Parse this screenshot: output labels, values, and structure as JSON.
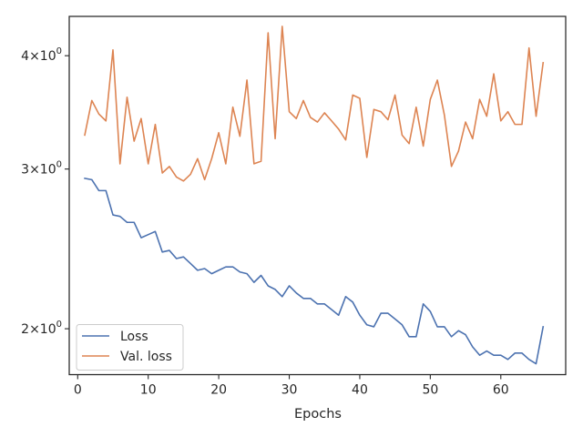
{
  "chart_data": {
    "type": "line",
    "title": "",
    "xlabel": "Epochs",
    "ylabel": "",
    "yscale": "log",
    "xlim": [
      -1.2,
      69.2
    ],
    "ylim": [
      1.78,
      4.42
    ],
    "xticks": [
      {
        "value": 0,
        "label": "0"
      },
      {
        "value": 10,
        "label": "10"
      },
      {
        "value": 20,
        "label": "20"
      },
      {
        "value": 30,
        "label": "30"
      },
      {
        "value": 40,
        "label": "40"
      },
      {
        "value": 50,
        "label": "50"
      },
      {
        "value": 60,
        "label": "60"
      }
    ],
    "yticks": [
      {
        "value": 2,
        "base": "2",
        "mult": "×",
        "pow": "10",
        "exp": "0"
      },
      {
        "value": 3,
        "base": "3",
        "mult": "×",
        "pow": "10",
        "exp": "0"
      },
      {
        "value": 4,
        "base": "4",
        "mult": "×",
        "pow": "10",
        "exp": "0"
      }
    ],
    "grid": false,
    "legend_position": "lower-left",
    "x": [
      1,
      2,
      3,
      4,
      5,
      6,
      7,
      8,
      9,
      10,
      11,
      12,
      13,
      14,
      15,
      16,
      17,
      18,
      19,
      20,
      21,
      22,
      23,
      24,
      25,
      26,
      27,
      28,
      29,
      30,
      31,
      32,
      33,
      34,
      35,
      36,
      37,
      38,
      39,
      40,
      41,
      42,
      43,
      44,
      45,
      46,
      47,
      48,
      49,
      50,
      51,
      52,
      53,
      54,
      55,
      56,
      57,
      58,
      59,
      60,
      61,
      62,
      63,
      64,
      65,
      66
    ],
    "series": [
      {
        "name": "Loss",
        "color": "#4c72b0",
        "values": [
          2.93,
          2.92,
          2.84,
          2.84,
          2.67,
          2.66,
          2.62,
          2.62,
          2.52,
          2.54,
          2.56,
          2.43,
          2.44,
          2.39,
          2.4,
          2.36,
          2.32,
          2.33,
          2.3,
          2.32,
          2.34,
          2.34,
          2.31,
          2.3,
          2.25,
          2.29,
          2.23,
          2.21,
          2.17,
          2.23,
          2.19,
          2.16,
          2.16,
          2.13,
          2.13,
          2.1,
          2.07,
          2.17,
          2.14,
          2.07,
          2.02,
          2.01,
          2.08,
          2.08,
          2.05,
          2.02,
          1.96,
          1.96,
          2.13,
          2.09,
          2.01,
          2.01,
          1.96,
          1.99,
          1.97,
          1.91,
          1.87,
          1.89,
          1.87,
          1.87,
          1.85,
          1.88,
          1.88,
          1.85,
          1.83,
          2.01
        ]
      },
      {
        "name": "Val. loss",
        "color": "#dd8452",
        "values": [
          3.27,
          3.57,
          3.45,
          3.39,
          4.06,
          3.04,
          3.6,
          3.22,
          3.41,
          3.04,
          3.36,
          2.97,
          3.02,
          2.94,
          2.91,
          2.96,
          3.08,
          2.92,
          3.08,
          3.29,
          3.04,
          3.51,
          3.26,
          3.76,
          3.04,
          3.06,
          4.24,
          3.24,
          4.31,
          3.47,
          3.41,
          3.57,
          3.42,
          3.38,
          3.46,
          3.39,
          3.32,
          3.23,
          3.62,
          3.59,
          3.09,
          3.49,
          3.47,
          3.4,
          3.62,
          3.27,
          3.2,
          3.51,
          3.18,
          3.58,
          3.76,
          3.44,
          3.02,
          3.14,
          3.38,
          3.24,
          3.58,
          3.43,
          3.82,
          3.39,
          3.47,
          3.36,
          3.36,
          4.08,
          3.43,
          3.93
        ]
      }
    ]
  }
}
